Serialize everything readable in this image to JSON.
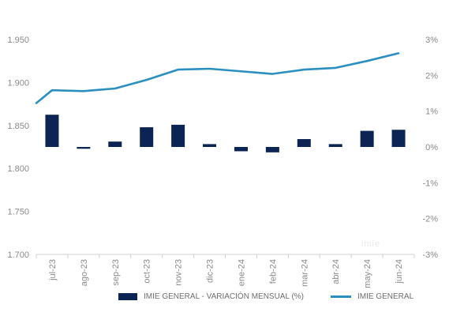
{
  "chart_data": {
    "type": "bar-line-combo",
    "categories": [
      "jul-23",
      "ago-23",
      "sep-23",
      "oct-23",
      "nov-23",
      "dic-23",
      "ene-24",
      "feb-24",
      "mar-24",
      "abr-24",
      "may-24",
      "jun-24"
    ],
    "series": [
      {
        "name": "IMIE GENERAL - VARIACIÓN MENSUAL (%)",
        "type": "bar",
        "axis": "right",
        "color": "#0b2454",
        "values": [
          0.9,
          -0.05,
          0.15,
          0.55,
          0.62,
          0.08,
          -0.12,
          -0.15,
          0.22,
          0.08,
          0.45,
          0.48
        ]
      },
      {
        "name": "IMIE GENERAL",
        "type": "line",
        "axis": "left",
        "color": "#2b8fc0",
        "x_start": 1876,
        "values": [
          1891,
          1890,
          1893,
          1903,
          1915,
          1916,
          1913,
          1910,
          1915,
          1917,
          1925,
          1934
        ]
      }
    ],
    "y_left": {
      "min": 1700,
      "max": 1950,
      "ticks": [
        "1.700",
        "1.750",
        "1.800",
        "1.850",
        "1.900",
        "1.950"
      ]
    },
    "y_right": {
      "min": -3,
      "max": 3,
      "ticks": [
        "-3%",
        "-2%",
        "-1%",
        "0%",
        "1%",
        "2%",
        "3%"
      ]
    },
    "grid": {
      "horizontal": false,
      "vertical": false
    },
    "legend_placement": "bottom",
    "watermark": "imie"
  },
  "legend": {
    "bar_label": "IMIE GENERAL - VARIACIÓN MENSUAL (%)",
    "line_label": "IMIE GENERAL"
  }
}
